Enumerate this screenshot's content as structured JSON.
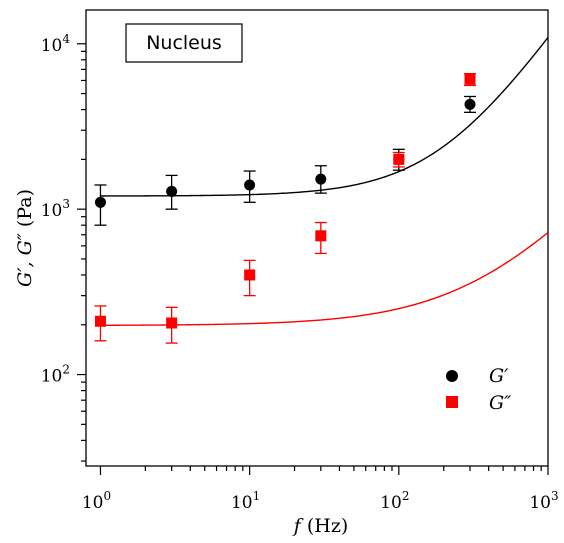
{
  "chart_data": {
    "type": "scatter",
    "annotation": "Nucleus",
    "x_scale": "log",
    "y_scale": "log",
    "xlim": [
      0.8,
      1000
    ],
    "ylim": [
      28,
      16000
    ],
    "x_ticks": [
      {
        "value": 1,
        "base": "10",
        "exp": "0"
      },
      {
        "value": 10,
        "base": "10",
        "exp": "1"
      },
      {
        "value": 100,
        "base": "10",
        "exp": "2"
      },
      {
        "value": 1000,
        "base": "10",
        "exp": "3"
      }
    ],
    "y_ticks": [
      {
        "value": 100,
        "base": "10",
        "exp": "2"
      },
      {
        "value": 1000,
        "base": "10",
        "exp": "3"
      },
      {
        "value": 10000,
        "base": "10",
        "exp": "4"
      }
    ],
    "xlabel": {
      "var": "f",
      "unit": " (Hz)"
    },
    "ylabel": {
      "var": "G′, G″",
      "unit": " (Pa)"
    },
    "legend_position": "bottom-right",
    "series": [
      {
        "name": "G′",
        "marker": "circle",
        "color": "#000000",
        "points": [
          {
            "x": 1,
            "y": 1100,
            "lo": 800,
            "hi": 1400
          },
          {
            "x": 3,
            "y": 1280,
            "lo": 1000,
            "hi": 1600
          },
          {
            "x": 10,
            "y": 1400,
            "lo": 1100,
            "hi": 1700
          },
          {
            "x": 30,
            "y": 1520,
            "lo": 1250,
            "hi": 1830
          },
          {
            "x": 100,
            "y": 2000,
            "lo": 1720,
            "hi": 2300
          },
          {
            "x": 300,
            "y": 4300,
            "lo": 3850,
            "hi": 4800
          }
        ],
        "fit": {
          "g0": 1200,
          "a": 0.00102,
          "n": 1.3
        }
      },
      {
        "name": "G″",
        "marker": "square",
        "color": "#ff0000",
        "points": [
          {
            "x": 1,
            "y": 210,
            "lo": 160,
            "hi": 260
          },
          {
            "x": 3,
            "y": 205,
            "lo": 155,
            "hi": 255
          },
          {
            "x": 10,
            "y": 400,
            "lo": 300,
            "hi": 490
          },
          {
            "x": 30,
            "y": 690,
            "lo": 540,
            "hi": 830
          },
          {
            "x": 100,
            "y": 2000,
            "lo": 1800,
            "hi": 2200
          },
          {
            "x": 300,
            "y": 6100,
            "lo": 5600,
            "hi": 6600
          }
        ],
        "fit": {
          "g0": 198,
          "a": 0.00265,
          "n": 1.0
        }
      }
    ]
  }
}
